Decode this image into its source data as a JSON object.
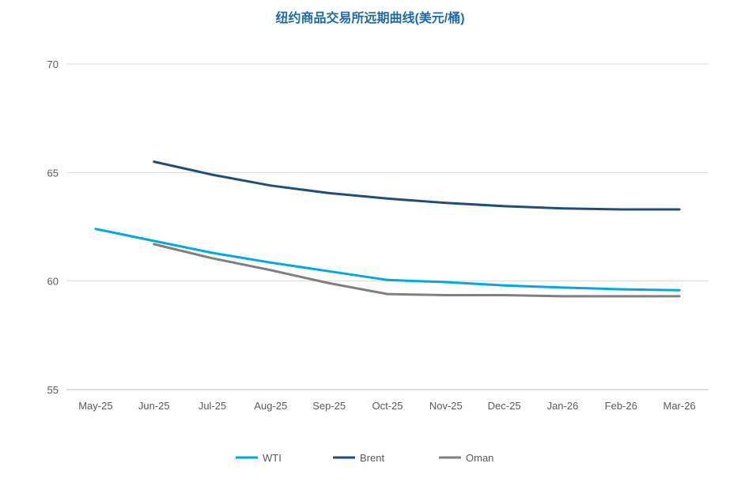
{
  "chart_data": {
    "type": "line",
    "title": "纽约商品交易所远期曲线(美元/桶)",
    "title_color": "#1f6aa5",
    "xlabel": "",
    "ylabel": "",
    "categories": [
      "May-25",
      "Jun-25",
      "Jul-25",
      "Aug-25",
      "Sep-25",
      "Oct-25",
      "Nov-25",
      "Dec-25",
      "Jan-26",
      "Feb-26",
      "Mar-26"
    ],
    "ylim": [
      55,
      70
    ],
    "yticks": [
      "55",
      "60",
      "65",
      "70"
    ],
    "grid": true,
    "legend_position": "bottom",
    "series": [
      {
        "name": "WTI",
        "color": "#00a9e0",
        "values": [
          62.4,
          61.85,
          61.3,
          60.85,
          60.45,
          60.05,
          59.95,
          59.8,
          59.7,
          59.62,
          59.58
        ]
      },
      {
        "name": "Brent",
        "color": "#1f4e79",
        "values": [
          null,
          65.5,
          64.9,
          64.4,
          64.05,
          63.8,
          63.6,
          63.45,
          63.35,
          63.3,
          63.3
        ]
      },
      {
        "name": "Oman",
        "color": "#7f7f7f",
        "values": [
          null,
          61.7,
          61.05,
          60.5,
          59.9,
          59.4,
          59.35,
          59.35,
          59.3,
          59.3,
          59.3
        ]
      }
    ]
  }
}
